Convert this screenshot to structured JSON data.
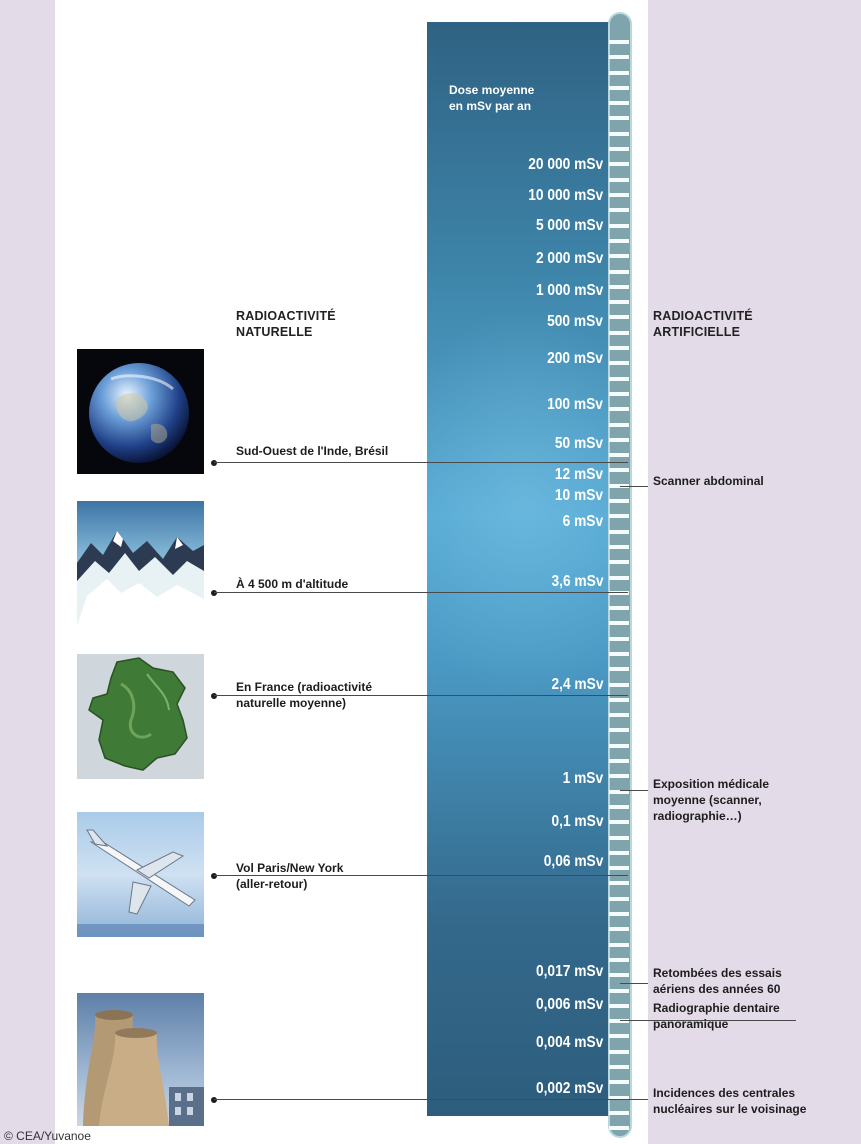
{
  "column_caption": [
    "Dose moyenne",
    "en mSv par an"
  ],
  "doses": [
    {
      "id": "d20000",
      "text": "20 000 mSv"
    },
    {
      "id": "d10000",
      "text": "10 000 mSv"
    },
    {
      "id": "d5000",
      "text": "5 000 mSv"
    },
    {
      "id": "d2000",
      "text": "2 000 mSv"
    },
    {
      "id": "d1000",
      "text": "1 000 mSv"
    },
    {
      "id": "d500",
      "text": "500 mSv"
    },
    {
      "id": "d200",
      "text": "200 mSv"
    },
    {
      "id": "d100",
      "text": "100 mSv"
    },
    {
      "id": "d50",
      "text": "50 mSv"
    },
    {
      "id": "d12",
      "text": "12 mSv"
    },
    {
      "id": "d10",
      "text": "10 mSv"
    },
    {
      "id": "d6",
      "text": "6 mSv"
    },
    {
      "id": "d3_6",
      "text": "3,6 mSv"
    },
    {
      "id": "d2_4",
      "text": "2,4 mSv"
    },
    {
      "id": "d1",
      "text": "1 mSv"
    },
    {
      "id": "d0_1",
      "text": "0,1 mSv"
    },
    {
      "id": "d0_06",
      "text": "0,06 mSv"
    },
    {
      "id": "d0_017",
      "text": "0,017 mSv"
    },
    {
      "id": "d0_006",
      "text": "0,006 mSv"
    },
    {
      "id": "d0_004",
      "text": "0,004 mSv"
    },
    {
      "id": "d0_002",
      "text": "0,002 mSv"
    }
  ],
  "natural": {
    "heading": [
      "RADIOACTIVITÉ",
      "NATURELLE"
    ],
    "items": [
      {
        "id": "inde",
        "lines": [
          "Sud-Ouest de l'Inde, Brésil"
        ],
        "image": "earth-globe-image"
      },
      {
        "id": "altitude",
        "lines": [
          "À 4 500 m d'altitude"
        ],
        "image": "snowy-mountains-image"
      },
      {
        "id": "france",
        "lines": [
          "En France (radioactivité",
          "naturelle moyenne)"
        ],
        "image": "france-map-image"
      },
      {
        "id": "vol",
        "lines": [
          "Vol Paris/New York",
          "(aller-retour)"
        ],
        "image": "airplane-image"
      },
      {
        "id": "centrales",
        "lines": [],
        "image": "cooling-towers-image"
      }
    ]
  },
  "artificial": {
    "heading": [
      "RADIOACTIVITÉ",
      "ARTIFICIELLE"
    ],
    "items": [
      {
        "id": "scanner",
        "lines": [
          "Scanner abdominal"
        ]
      },
      {
        "id": "medicale",
        "lines": [
          "Exposition médicale",
          "moyenne (scanner,",
          "radiographie…)"
        ]
      },
      {
        "id": "retombees",
        "lines": [
          "Retombées des essais",
          "aériens des années 60"
        ]
      },
      {
        "id": "dentaire",
        "lines": [
          "Radiographie dentaire",
          "panoramique"
        ]
      },
      {
        "id": "incidences",
        "lines": [
          "Incidences des centrales",
          "nucléaires sur le voisinage"
        ]
      }
    ]
  },
  "credit": "© CEA/Yuvanoe",
  "colors": {
    "background_band": "#e4dbe9",
    "column_dark": "#2f6283",
    "column_light": "#56a9d4",
    "tube": "#7fa4ad",
    "text": "#1d1d1d"
  }
}
